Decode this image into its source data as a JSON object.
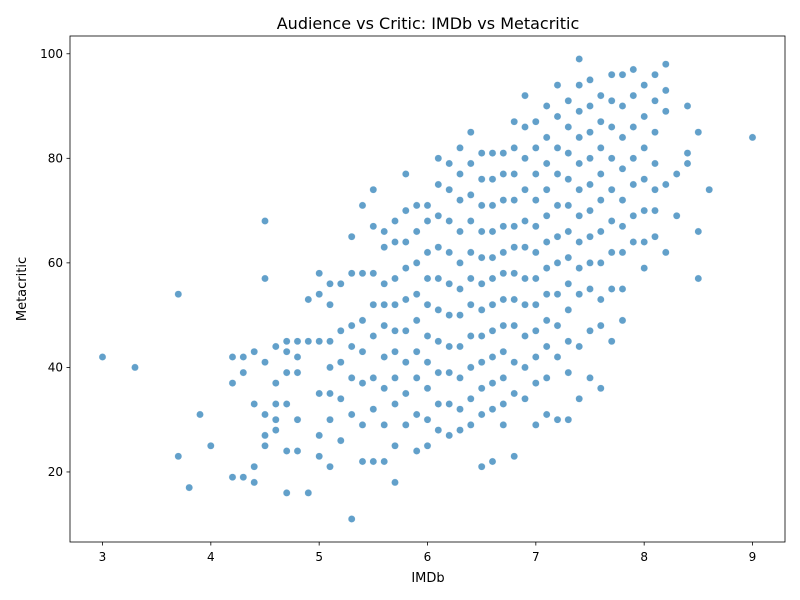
{
  "chart_data": {
    "type": "scatter",
    "title": "Audience vs Critic: IMDb vs Metacritic",
    "xlabel": "IMDb",
    "ylabel": "Metacritic",
    "xlim": [
      2.7,
      9.3
    ],
    "ylim": [
      6.6,
      103.4
    ],
    "xticks": [
      "3",
      "4",
      "5",
      "6",
      "7",
      "8",
      "9"
    ],
    "yticks": [
      "20",
      "40",
      "60",
      "80",
      "100"
    ],
    "grid": false,
    "legend": "none",
    "marker_color": "#1f77b4",
    "series": [
      {
        "x": [
          3.0,
          3.3,
          3.7,
          3.7,
          3.8,
          3.9,
          4.0,
          4.2,
          4.2,
          4.2,
          4.3,
          4.3,
          4.3,
          4.4,
          4.4,
          4.4,
          4.4,
          4.5,
          4.5,
          4.5,
          4.5,
          4.5,
          4.5,
          4.6,
          4.6,
          4.6,
          4.6,
          4.6,
          4.7,
          4.7,
          4.7,
          4.7,
          4.7,
          4.7,
          4.8,
          4.8,
          4.8,
          4.8,
          4.8,
          4.9,
          4.9,
          4.9,
          5.0,
          5.0,
          5.0,
          5.0,
          5.0,
          5.0,
          5.1,
          5.1,
          5.1,
          5.1,
          5.1,
          5.1,
          5.1,
          5.2,
          5.2,
          5.2,
          5.2,
          5.2,
          5.3,
          5.3,
          5.3,
          5.3,
          5.3,
          5.3,
          5.3,
          5.4,
          5.4,
          5.4,
          5.4,
          5.4,
          5.4,
          5.4,
          5.5,
          5.5,
          5.5,
          5.5,
          5.5,
          5.5,
          5.5,
          5.5,
          5.6,
          5.6,
          5.6,
          5.6,
          5.6,
          5.6,
          5.6,
          5.6,
          5.6,
          5.7,
          5.7,
          5.7,
          5.7,
          5.7,
          5.7,
          5.7,
          5.7,
          5.7,
          5.7,
          5.8,
          5.8,
          5.8,
          5.8,
          5.8,
          5.8,
          5.8,
          5.8,
          5.8,
          5.9,
          5.9,
          5.9,
          5.9,
          5.9,
          5.9,
          5.9,
          5.9,
          5.9,
          6.0,
          6.0,
          6.0,
          6.0,
          6.0,
          6.0,
          6.0,
          6.0,
          6.0,
          6.0,
          6.1,
          6.1,
          6.1,
          6.1,
          6.1,
          6.1,
          6.1,
          6.1,
          6.1,
          6.1,
          6.2,
          6.2,
          6.2,
          6.2,
          6.2,
          6.2,
          6.2,
          6.2,
          6.2,
          6.2,
          6.3,
          6.3,
          6.3,
          6.3,
          6.3,
          6.3,
          6.3,
          6.3,
          6.3,
          6.3,
          6.3,
          6.4,
          6.4,
          6.4,
          6.4,
          6.4,
          6.4,
          6.4,
          6.4,
          6.4,
          6.4,
          6.4,
          6.5,
          6.5,
          6.5,
          6.5,
          6.5,
          6.5,
          6.5,
          6.5,
          6.5,
          6.5,
          6.5,
          6.5,
          6.6,
          6.6,
          6.6,
          6.6,
          6.6,
          6.6,
          6.6,
          6.6,
          6.6,
          6.6,
          6.6,
          6.6,
          6.7,
          6.7,
          6.7,
          6.7,
          6.7,
          6.7,
          6.7,
          6.7,
          6.7,
          6.7,
          6.7,
          6.7,
          6.8,
          6.8,
          6.8,
          6.8,
          6.8,
          6.8,
          6.8,
          6.8,
          6.8,
          6.8,
          6.8,
          6.8,
          6.9,
          6.9,
          6.9,
          6.9,
          6.9,
          6.9,
          6.9,
          6.9,
          6.9,
          6.9,
          6.9,
          7.0,
          7.0,
          7.0,
          7.0,
          7.0,
          7.0,
          7.0,
          7.0,
          7.0,
          7.0,
          7.0,
          7.0,
          7.1,
          7.1,
          7.1,
          7.1,
          7.1,
          7.1,
          7.1,
          7.1,
          7.1,
          7.1,
          7.1,
          7.1,
          7.2,
          7.2,
          7.2,
          7.2,
          7.2,
          7.2,
          7.2,
          7.2,
          7.2,
          7.2,
          7.2,
          7.3,
          7.3,
          7.3,
          7.3,
          7.3,
          7.3,
          7.3,
          7.3,
          7.3,
          7.3,
          7.3,
          7.3,
          7.4,
          7.4,
          7.4,
          7.4,
          7.4,
          7.4,
          7.4,
          7.4,
          7.4,
          7.4,
          7.4,
          7.4,
          7.5,
          7.5,
          7.5,
          7.5,
          7.5,
          7.5,
          7.5,
          7.5,
          7.5,
          7.5,
          7.5,
          7.6,
          7.6,
          7.6,
          7.6,
          7.6,
          7.6,
          7.6,
          7.6,
          7.6,
          7.6,
          7.7,
          7.7,
          7.7,
          7.7,
          7.7,
          7.7,
          7.7,
          7.7,
          7.7,
          7.8,
          7.8,
          7.8,
          7.8,
          7.8,
          7.8,
          7.8,
          7.8,
          7.8,
          7.9,
          7.9,
          7.9,
          7.9,
          7.9,
          7.9,
          7.9,
          8.0,
          8.0,
          8.0,
          8.0,
          8.0,
          8.0,
          8.0,
          8.1,
          8.1,
          8.1,
          8.1,
          8.1,
          8.1,
          8.1,
          8.2,
          8.2,
          8.2,
          8.2,
          8.2,
          8.3,
          8.3,
          8.4,
          8.4,
          8.4,
          8.5,
          8.5,
          8.5,
          8.6,
          9.0
        ],
        "y": [
          42,
          40,
          54,
          23,
          17,
          31,
          25,
          42,
          37,
          19,
          42,
          39,
          19,
          43,
          33,
          21,
          18,
          68,
          57,
          41,
          31,
          27,
          25,
          44,
          37,
          33,
          30,
          28,
          45,
          43,
          39,
          33,
          24,
          16,
          45,
          42,
          39,
          30,
          24,
          53,
          45,
          16,
          58,
          54,
          45,
          35,
          27,
          23,
          56,
          52,
          45,
          40,
          35,
          30,
          21,
          56,
          47,
          41,
          34,
          26,
          65,
          58,
          48,
          44,
          38,
          31,
          11,
          71,
          58,
          49,
          43,
          37,
          29,
          22,
          74,
          67,
          58,
          52,
          46,
          38,
          32,
          22,
          66,
          63,
          56,
          52,
          48,
          42,
          36,
          29,
          22,
          68,
          64,
          57,
          52,
          47,
          43,
          38,
          33,
          25,
          18,
          77,
          70,
          64,
          59,
          53,
          47,
          41,
          35,
          29,
          71,
          66,
          60,
          54,
          49,
          43,
          38,
          31,
          24,
          71,
          68,
          62,
          57,
          52,
          46,
          41,
          36,
          30,
          25,
          80,
          75,
          69,
          63,
          57,
          51,
          45,
          39,
          33,
          28,
          79,
          74,
          68,
          62,
          56,
          50,
          44,
          39,
          33,
          27,
          82,
          77,
          72,
          66,
          60,
          55,
          50,
          44,
          38,
          32,
          28,
          85,
          79,
          73,
          68,
          62,
          57,
          52,
          46,
          40,
          34,
          29,
          81,
          76,
          71,
          66,
          61,
          56,
          51,
          46,
          41,
          36,
          31,
          21,
          81,
          76,
          71,
          66,
          61,
          57,
          52,
          47,
          42,
          37,
          32,
          22,
          81,
          77,
          72,
          67,
          62,
          58,
          53,
          48,
          43,
          38,
          33,
          29,
          87,
          82,
          77,
          72,
          67,
          63,
          58,
          53,
          48,
          41,
          35,
          23,
          92,
          86,
          80,
          74,
          68,
          63,
          57,
          52,
          46,
          40,
          34,
          87,
          82,
          77,
          72,
          67,
          62,
          57,
          52,
          47,
          42,
          37,
          29,
          90,
          84,
          79,
          74,
          69,
          64,
          59,
          54,
          49,
          44,
          38,
          31,
          94,
          88,
          82,
          77,
          71,
          65,
          60,
          54,
          48,
          42,
          30,
          91,
          86,
          81,
          76,
          71,
          66,
          61,
          56,
          51,
          45,
          39,
          30,
          99,
          94,
          89,
          84,
          79,
          74,
          69,
          64,
          59,
          54,
          44,
          34,
          95,
          90,
          85,
          80,
          75,
          70,
          65,
          60,
          55,
          47,
          38,
          92,
          87,
          82,
          77,
          72,
          66,
          60,
          53,
          48,
          36,
          96,
          91,
          86,
          80,
          74,
          68,
          62,
          55,
          45,
          96,
          90,
          84,
          78,
          72,
          67,
          62,
          55,
          49,
          97,
          92,
          86,
          80,
          75,
          69,
          64,
          94,
          88,
          82,
          76,
          70,
          64,
          59,
          96,
          91,
          85,
          79,
          74,
          70,
          65,
          98,
          93,
          89,
          75,
          62,
          77,
          69,
          90,
          81,
          79,
          85,
          66,
          57,
          74,
          84
        ]
      }
    ]
  }
}
